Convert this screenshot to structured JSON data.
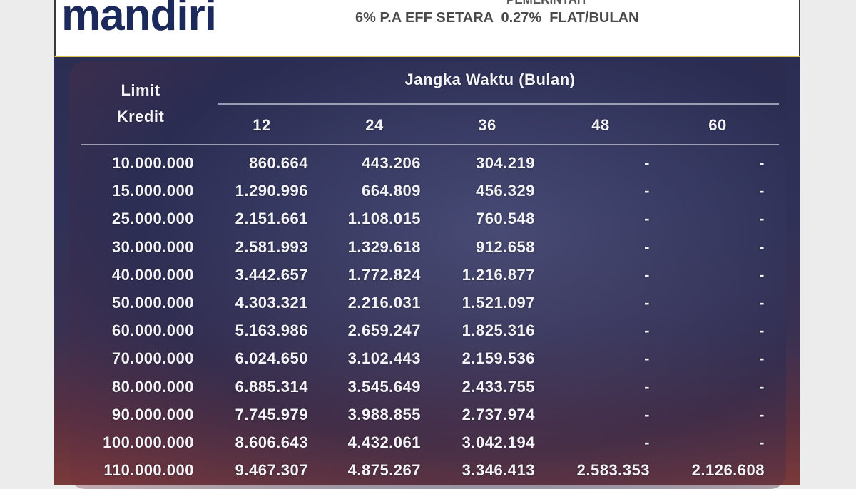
{
  "header": {
    "logo": "mandiri",
    "subtitle_partial": "PEMERINTAH",
    "rate_note": "6% P.A EFF SETARA  0.27%  FLAT/BULAN"
  },
  "table": {
    "limit_header": "Limit Kredit",
    "term_header": "Jangka Waktu (Bulan)",
    "columns": [
      "12",
      "24",
      "36",
      "48",
      "60"
    ],
    "rows": [
      [
        "10.000.000",
        "860.664",
        "443.206",
        "304.219",
        "-",
        "-"
      ],
      [
        "15.000.000",
        "1.290.996",
        "664.809",
        "456.329",
        "-",
        "-"
      ],
      [
        "25.000.000",
        "2.151.661",
        "1.108.015",
        "760.548",
        "-",
        "-"
      ],
      [
        "30.000.000",
        "2.581.993",
        "1.329.618",
        "912.658",
        "-",
        "-"
      ],
      [
        "40.000.000",
        "3.442.657",
        "1.772.824",
        "1.216.877",
        "-",
        "-"
      ],
      [
        "50.000.000",
        "4.303.321",
        "2.216.031",
        "1.521.097",
        "-",
        "-"
      ],
      [
        "60.000.000",
        "5.163.986",
        "2.659.247",
        "1.825.316",
        "-",
        "-"
      ],
      [
        "70.000.000",
        "6.024.650",
        "3.102.443",
        "2.159.536",
        "-",
        "-"
      ],
      [
        "80.000.000",
        "6.885.314",
        "3.545.649",
        "2.433.755",
        "-",
        "-"
      ],
      [
        "90.000.000",
        "7.745.979",
        "3.988.855",
        "2.737.974",
        "-",
        "-"
      ],
      [
        "100.000.000",
        "8.606.643",
        "4.432.061",
        "3.042.194",
        "-",
        "-"
      ],
      [
        "110.000.000",
        "9.467.307",
        "4.875.267",
        "3.346.413",
        "2.583.353",
        "2.126.608"
      ]
    ]
  }
}
